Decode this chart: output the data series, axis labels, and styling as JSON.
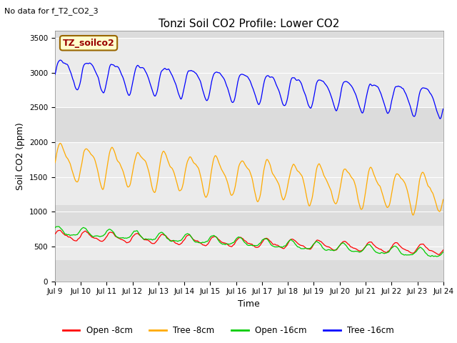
{
  "title": "Tonzi Soil CO2 Profile: Lower CO2",
  "subtitle": "No data for f_T2_CO2_3",
  "ylabel": "Soil CO2 (ppm)",
  "xlabel": "Time",
  "legend_label": "TZ_soilco2",
  "legend_entries": [
    "Open -8cm",
    "Tree -8cm",
    "Open -16cm",
    "Tree -16cm"
  ],
  "legend_colors": [
    "#ff0000",
    "#ffaa00",
    "#00cc00",
    "#0000ff"
  ],
  "ylim": [
    0,
    3600
  ],
  "yticks": [
    0,
    500,
    1000,
    1500,
    2000,
    2500,
    3000,
    3500
  ],
  "background_color": "#ffffff",
  "plot_bg_color": "#dcdcdc",
  "band1_color": "#ebebeb",
  "band2_color": "#ebebeb",
  "band3_color": "#ebebeb",
  "n_points": 1500,
  "start_day": 9,
  "end_day": 24
}
